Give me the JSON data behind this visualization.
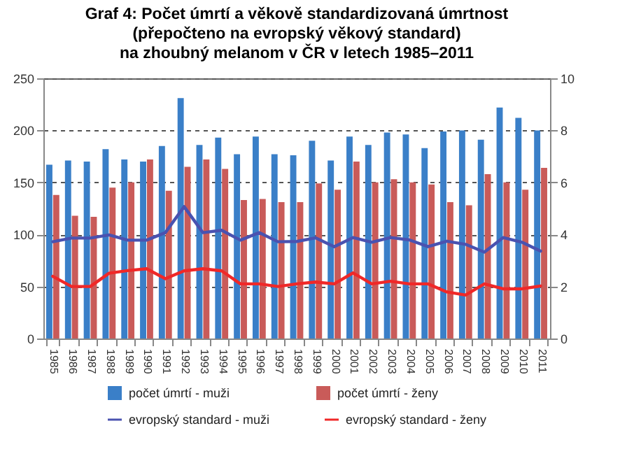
{
  "chart_data": {
    "type": "bar",
    "title": "Graf 4: Počet úmrtí a věkově standardizovaná úmrtnost\n(přepočteno na evropský věkový standard)\nna zhoubný melanom v ČR v letech 1985–2011",
    "categories": [
      "1985",
      "1986",
      "1987",
      "1988",
      "1989",
      "1990",
      "1991",
      "1992",
      "1993",
      "1994",
      "1995",
      "1996",
      "1997",
      "1998",
      "1999",
      "2000",
      "2001",
      "2002",
      "2003",
      "2004",
      "2005",
      "2006",
      "2007",
      "2008",
      "2009",
      "2010",
      "2011"
    ],
    "series": [
      {
        "name": "počet úmrtí - muži",
        "color": "#3a7fc8",
        "values": [
          167,
          171,
          170,
          182,
          172,
          170,
          185,
          231,
          186,
          193,
          177,
          194,
          177,
          176,
          190,
          171,
          194,
          186,
          198,
          196,
          183,
          199,
          200,
          191,
          222,
          212,
          200
        ]
      },
      {
        "name": "počet úmrtí - ženy",
        "color": "#c95b59",
        "values": [
          138,
          118,
          117,
          145,
          150,
          172,
          142,
          165,
          172,
          163,
          133,
          134,
          131,
          131,
          149,
          143,
          170,
          150,
          153,
          150,
          148,
          131,
          128,
          158,
          150,
          143,
          164
        ]
      },
      {
        "name": "evropský standard - muži",
        "type": "line",
        "axis": "y2",
        "color": "#4a52b0",
        "values": [
          3.72,
          3.86,
          3.86,
          3.98,
          3.78,
          3.78,
          4.07,
          5.07,
          4.07,
          4.16,
          3.78,
          4.07,
          3.72,
          3.73,
          3.87,
          3.53,
          3.88,
          3.7,
          3.88,
          3.79,
          3.53,
          3.74,
          3.62,
          3.32,
          3.88,
          3.7,
          3.36
        ]
      },
      {
        "name": "evropský standard - ženy",
        "type": "line",
        "axis": "y2",
        "color": "#f02828",
        "values": [
          2.39,
          2.0,
          2.0,
          2.51,
          2.61,
          2.68,
          2.3,
          2.6,
          2.68,
          2.6,
          2.1,
          2.1,
          2.0,
          2.1,
          2.17,
          2.1,
          2.52,
          2.1,
          2.2,
          2.1,
          2.1,
          1.79,
          1.67,
          2.1,
          1.91,
          1.91,
          2.02
        ]
      }
    ],
    "ylim": [
      0,
      250
    ],
    "yticks": [
      0,
      50,
      100,
      150,
      200,
      250
    ],
    "y2lim": [
      0,
      10
    ],
    "y2ticks": [
      0,
      2,
      4,
      6,
      8,
      10
    ],
    "grid": "y",
    "legend": "bottom"
  }
}
